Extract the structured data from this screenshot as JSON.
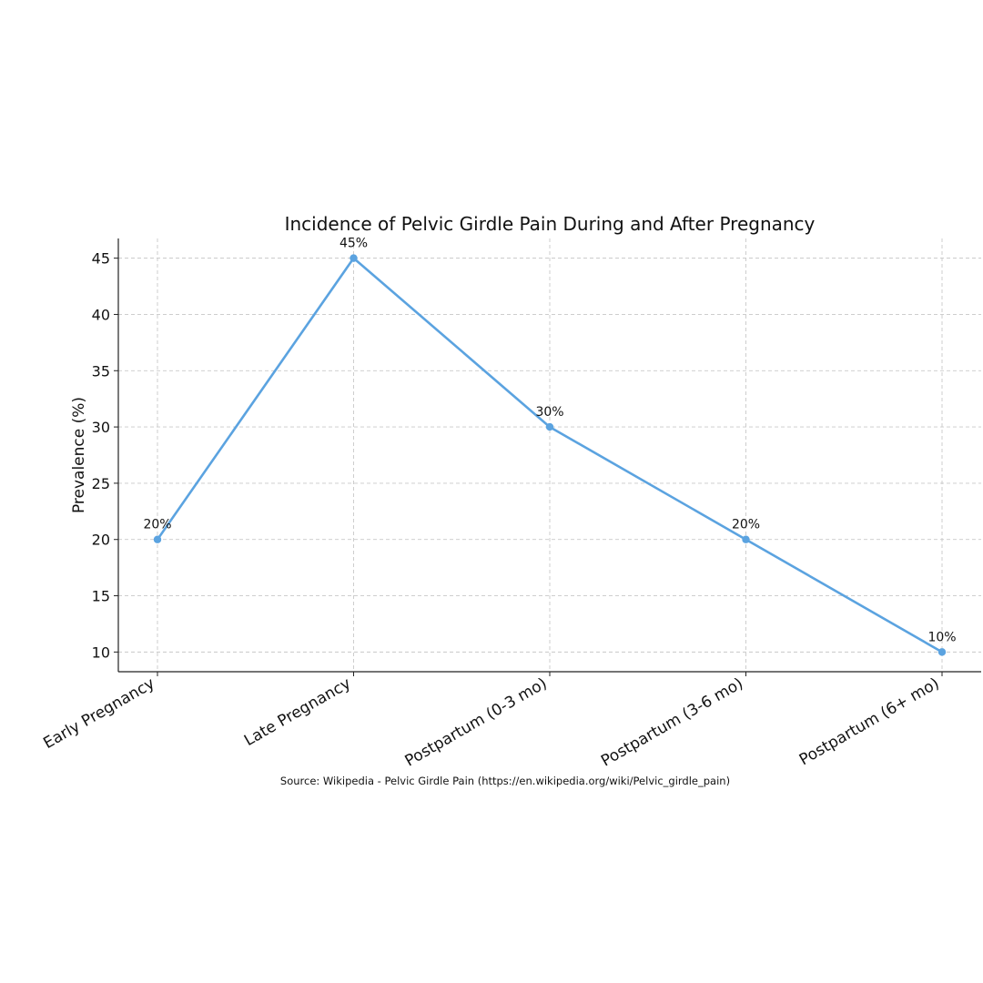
{
  "chart_data": {
    "type": "line",
    "title": "Incidence of Pelvic Girdle Pain During and After Pregnancy",
    "xlabel": "",
    "ylabel": "Prevalence (%)",
    "categories": [
      "Early Pregnancy",
      "Late Pregnancy",
      "Postpartum (0-3 mo)",
      "Postpartum (3-6 mo)",
      "Postpartum (6+ mo)"
    ],
    "series": [
      {
        "values": [
          20,
          45,
          30,
          20,
          10
        ],
        "color": "#5ba3e0"
      }
    ],
    "data_labels": [
      "20%",
      "45%",
      "30%",
      "20%",
      "10%"
    ],
    "yticks": [
      10,
      15,
      20,
      25,
      30,
      35,
      40,
      45
    ],
    "ylim": [
      8.25,
      46.75
    ],
    "grid": true,
    "source": "Source: Wikipedia - Pelvic Girdle Pain (https://en.wikipedia.org/wiki/Pelvic_girdle_pain)"
  }
}
